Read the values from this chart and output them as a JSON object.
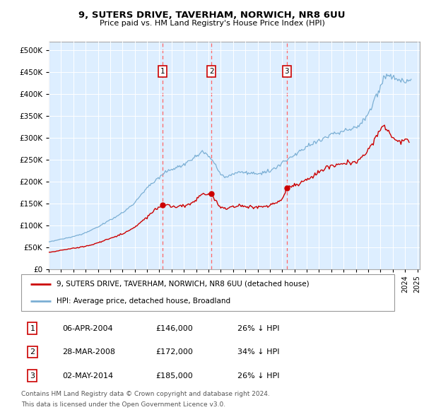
{
  "title1": "9, SUTERS DRIVE, TAVERHAM, NORWICH, NR8 6UU",
  "title2": "Price paid vs. HM Land Registry's House Price Index (HPI)",
  "legend1": "9, SUTERS DRIVE, TAVERHAM, NORWICH, NR8 6UU (detached house)",
  "legend2": "HPI: Average price, detached house, Broadland",
  "footer1": "Contains HM Land Registry data © Crown copyright and database right 2024.",
  "footer2": "This data is licensed under the Open Government Licence v3.0.",
  "transactions": [
    {
      "num": 1,
      "date": "06-APR-2004",
      "price": 146000,
      "pct": "26% ↓ HPI",
      "year": 2004.27
    },
    {
      "num": 2,
      "date": "28-MAR-2008",
      "price": 172000,
      "pct": "34% ↓ HPI",
      "year": 2008.24
    },
    {
      "num": 3,
      "date": "02-MAY-2014",
      "price": 185000,
      "pct": "26% ↓ HPI",
      "year": 2014.37
    }
  ],
  "hpi_color": "#7bafd4",
  "price_color": "#cc0000",
  "vline_color": "#ff6666",
  "bg_color": "#ddeeff",
  "ylim": [
    0,
    520000
  ],
  "yticks": [
    0,
    50000,
    100000,
    150000,
    200000,
    250000,
    300000,
    350000,
    400000,
    450000,
    500000
  ],
  "xlim_start": 1995.0,
  "xlim_end": 2025.2
}
